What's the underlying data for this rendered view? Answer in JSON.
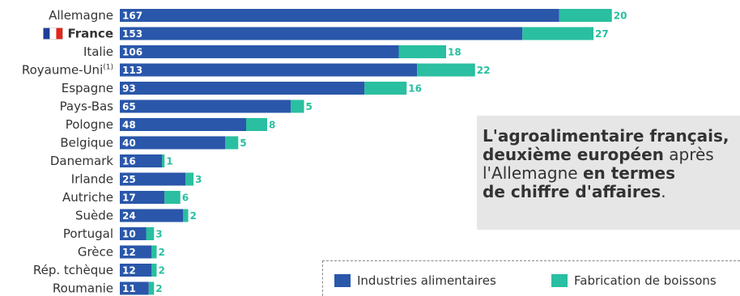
{
  "colors": {
    "food": "#2a57aa",
    "beverage": "#29bfa0",
    "text": "#333333",
    "callout_bg": "#e6e6e6"
  },
  "chart_data": {
    "type": "bar",
    "orientation": "horizontal",
    "stacked": true,
    "categories": [
      "Allemagne",
      "France",
      "Italie",
      "Royaume-Uni",
      "Espagne",
      "Pays-Bas",
      "Pologne",
      "Belgique",
      "Danemark",
      "Irlande",
      "Autriche",
      "Suède",
      "Portugal",
      "Grèce",
      "Rép. tchèque",
      "Roumanie"
    ],
    "category_superscripts": {
      "Royaume-Uni": "(1)"
    },
    "highlight_category": "France",
    "series": [
      {
        "name": "Industries alimentaires",
        "values": [
          167,
          153,
          106,
          113,
          93,
          65,
          48,
          40,
          16,
          25,
          17,
          24,
          10,
          12,
          12,
          11
        ]
      },
      {
        "name": "Fabrication de boissons",
        "values": [
          20,
          27,
          18,
          22,
          16,
          5,
          8,
          5,
          1,
          3,
          6,
          2,
          3,
          2,
          2,
          2
        ]
      }
    ],
    "xlim": [
      0,
      190
    ],
    "grid": false,
    "legend_position": "bottom-right"
  },
  "callout": {
    "line1_bold": "L'agroalimentaire français,",
    "line2_bold": "deuxième européen",
    "line2_regular": " après",
    "line3_regular": "l'Allemagne ",
    "line3_bold": "en termes",
    "line4_bold": "de chiffre d'affaires",
    "line4_regular": "."
  },
  "legend": {
    "items": [
      {
        "label": "Industries alimentaires"
      },
      {
        "label": "Fabrication de boissons"
      }
    ]
  },
  "flag_icon": "france-flag-icon"
}
